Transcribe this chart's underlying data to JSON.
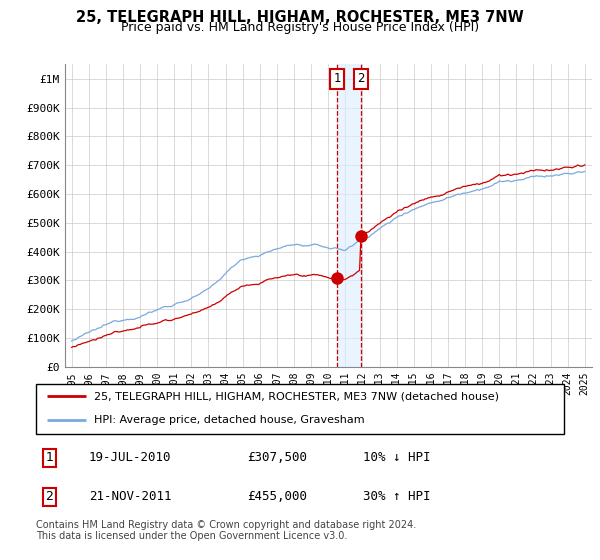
{
  "title": "25, TELEGRAPH HILL, HIGHAM, ROCHESTER, ME3 7NW",
  "subtitle": "Price paid vs. HM Land Registry's House Price Index (HPI)",
  "legend_line1": "25, TELEGRAPH HILL, HIGHAM, ROCHESTER, ME3 7NW (detached house)",
  "legend_line2": "HPI: Average price, detached house, Gravesham",
  "annotation1_date": "19-JUL-2010",
  "annotation1_price": "£307,500",
  "annotation1_hpi": "10% ↓ HPI",
  "annotation2_date": "21-NOV-2011",
  "annotation2_price": "£455,000",
  "annotation2_hpi": "30% ↑ HPI",
  "footnote": "Contains HM Land Registry data © Crown copyright and database right 2024.\nThis data is licensed under the Open Government Licence v3.0.",
  "price_line_color": "#cc0000",
  "hpi_line_color": "#7aaadd",
  "annotation_box_color": "#cc0000",
  "shading_color": "#ddeeff",
  "ylim": [
    0,
    1050000
  ],
  "yticks": [
    0,
    100000,
    200000,
    300000,
    400000,
    500000,
    600000,
    700000,
    800000,
    900000,
    1000000
  ],
  "ytick_labels": [
    "£0",
    "£100K",
    "£200K",
    "£300K",
    "£400K",
    "£500K",
    "£600K",
    "£700K",
    "£800K",
    "£900K",
    "£1M"
  ],
  "sale1_year_float": 2010.54,
  "sale1_price": 307500,
  "sale2_year_float": 2011.9,
  "sale2_price": 455000,
  "background_color": "#ffffff",
  "grid_color": "#cccccc"
}
